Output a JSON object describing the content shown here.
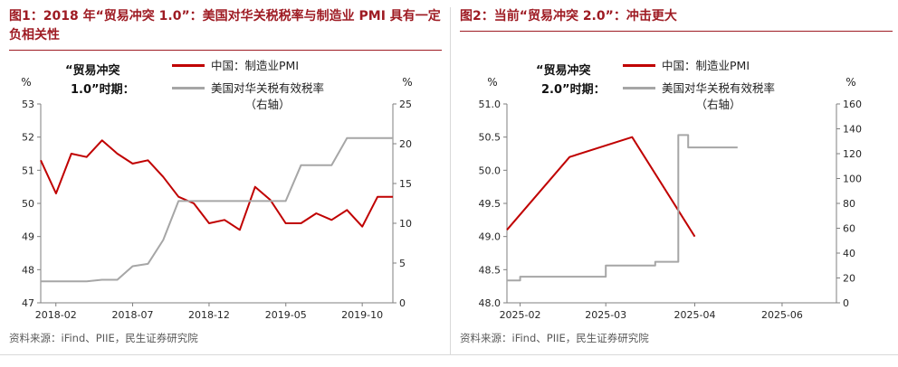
{
  "colors": {
    "brand_red": "#9E1B23",
    "pmi_red": "#C00000",
    "tariff_gray": "#A6A6A6",
    "axis_gray": "#7F7F7F",
    "tick_text": "#262626",
    "source_gray": "#595959",
    "divider_gray": "#D9D9D9"
  },
  "fig1": {
    "title": "图1：2018 年“贸易冲突 1.0”：美国对华关税税率与制造业 PMI 具有一定负相关性",
    "annotation_line1": "“贸易冲突",
    "annotation_line2": "1.0”时期：",
    "legend": {
      "pmi_label": "中国：制造业PMI",
      "tariff_label": "美国对华关税有效税率",
      "tariff_label2": "（右轴）"
    },
    "source": "资料来源：iFind、PIIE，民生证券研究院"
  },
  "fig2": {
    "title": "图2：当前“贸易冲突 2.0”：冲击更大",
    "annotation_line1": "“贸易冲突",
    "annotation_line2": "2.0”时期：",
    "legend": {
      "pmi_label": "中国：制造业PMI",
      "tariff_label": "美国对华关税有效税率",
      "tariff_label2": "（右轴）"
    },
    "source": "资料来源：iFind、PIIE，民生证券研究院"
  },
  "chart_data": [
    {
      "type": "line",
      "title": "图1：2018 年“贸易冲突 1.0”：美国对华关税税率与制造业 PMI 具有一定负相关性",
      "grid": false,
      "legend_position": "top",
      "left_axis": {
        "label": "%",
        "min": 47,
        "max": 53,
        "ticks": [
          53,
          52,
          51,
          50,
          49,
          48,
          47
        ],
        "decimals": 0
      },
      "right_axis": {
        "label": "%",
        "min": 0,
        "max": 25,
        "ticks": [
          25,
          20,
          15,
          10,
          5,
          0
        ],
        "decimals": 0
      },
      "x_ticks": [
        {
          "label": "2018-02",
          "pos": 0.043
        },
        {
          "label": "2018-07",
          "pos": 0.261
        },
        {
          "label": "2018-12",
          "pos": 0.478
        },
        {
          "label": "2019-05",
          "pos": 0.696
        },
        {
          "label": "2019-10",
          "pos": 0.913
        }
      ],
      "x_range_months": [
        "2018-01",
        "2019-12"
      ],
      "series": [
        {
          "id": "pmi-line",
          "name": "中国：制造业PMI",
          "axis": "left",
          "color": "#C00000",
          "values": [
            51.3,
            50.3,
            51.5,
            51.4,
            51.9,
            51.5,
            51.2,
            51.3,
            50.8,
            50.2,
            50.0,
            49.4,
            49.5,
            49.2,
            50.5,
            50.1,
            49.4,
            49.4,
            49.7,
            49.5,
            49.8,
            49.3,
            50.2,
            50.2
          ]
        },
        {
          "id": "tariff-line",
          "name": "美国对华关税有效税率（右轴）",
          "axis": "right",
          "color": "#A6A6A6",
          "values": [
            2.7,
            2.7,
            2.7,
            2.7,
            2.9,
            2.9,
            4.6,
            4.9,
            7.9,
            12.8,
            12.8,
            12.8,
            12.8,
            12.8,
            12.8,
            12.8,
            12.8,
            17.3,
            17.3,
            17.3,
            20.7,
            20.7,
            20.7,
            20.7
          ]
        }
      ]
    },
    {
      "type": "line",
      "title": "图2：当前“贸易冲突 2.0”：冲击更大",
      "grid": false,
      "legend_position": "top",
      "left_axis": {
        "label": "%",
        "min": 48.0,
        "max": 51.0,
        "ticks": [
          51.0,
          50.5,
          50.0,
          49.5,
          49.0,
          48.5,
          48.0
        ],
        "decimals": 1
      },
      "right_axis": {
        "label": "%",
        "min": 0,
        "max": 160,
        "ticks": [
          160,
          140,
          120,
          100,
          80,
          60,
          40,
          20,
          0
        ],
        "decimals": 0
      },
      "x_ticks": [
        {
          "label": "2025-02",
          "pos": 0.04
        },
        {
          "label": "2025-03",
          "pos": 0.3
        },
        {
          "label": "2025-04",
          "pos": 0.57
        },
        {
          "label": "2025-06",
          "pos": 0.835
        }
      ],
      "x_range_months": [
        "2025-01",
        "2025-05"
      ],
      "series": [
        {
          "id": "pmi-line",
          "name": "中国：制造业PMI",
          "axis": "left",
          "color": "#C00000",
          "x": [
            0.0,
            0.19,
            0.38,
            0.57
          ],
          "values": [
            49.1,
            50.2,
            50.5,
            49.0
          ]
        },
        {
          "id": "tariff-line",
          "name": "美国对华关税有效税率（右轴）",
          "axis": "right",
          "color": "#A6A6A6",
          "x": [
            0.0,
            0.04,
            0.04,
            0.3,
            0.3,
            0.45,
            0.45,
            0.52,
            0.52,
            0.55,
            0.55,
            0.7
          ],
          "values": [
            18,
            18,
            21,
            21,
            30,
            30,
            33,
            33,
            135,
            135,
            125,
            125
          ]
        }
      ]
    }
  ]
}
